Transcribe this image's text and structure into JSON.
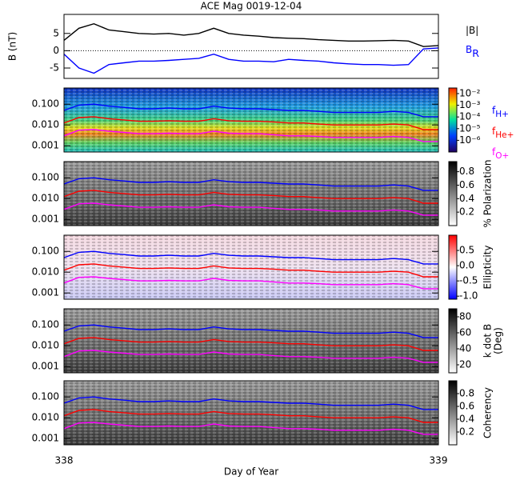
{
  "chart_data": [
    {
      "type": "line",
      "title": "ACE Mag 0019-12-04",
      "ylabel": "B (nT)",
      "x": [
        338,
        338.04,
        338.08,
        338.12,
        338.16,
        338.2,
        338.24,
        338.28,
        338.32,
        338.36,
        338.4,
        338.44,
        338.48,
        338.52,
        338.56,
        338.6,
        338.64,
        338.68,
        338.72,
        338.76,
        338.8,
        338.84,
        338.88,
        338.92,
        338.96,
        339
      ],
      "xlim": [
        338,
        339
      ],
      "xticks": [
        338,
        339
      ],
      "xlabel": "Day of Year",
      "ylim": [
        -8,
        10.5
      ],
      "yticks": [
        -5,
        0,
        5
      ],
      "series": [
        {
          "name": "|B|",
          "color": "#000000",
          "values": [
            3,
            6.5,
            7.8,
            6,
            5.5,
            5,
            4.8,
            5,
            4.5,
            5,
            6.5,
            5,
            4.5,
            4.2,
            3.8,
            3.6,
            3.5,
            3.2,
            3,
            2.8,
            2.8,
            2.9,
            3,
            2.8,
            1.2,
            1.5
          ]
        },
        {
          "name": "B",
          "subscript": "R",
          "color": "#0000ff",
          "values": [
            -1,
            -5,
            -6.5,
            -4,
            -3.5,
            -3,
            -3,
            -2.8,
            -2.5,
            -2.2,
            -1,
            -2.5,
            -3,
            -3,
            -3.2,
            -2.5,
            -2.8,
            -3,
            -3.5,
            -3.8,
            -4,
            -4,
            -4.2,
            -4,
            0.5,
            0.8
          ]
        }
      ]
    },
    {
      "type": "spectrogram",
      "log_y": true,
      "ylim": [
        0.0005,
        0.6
      ],
      "yticks": [
        {
          "value": 0.1,
          "label": "0.100"
        },
        {
          "value": 0.01,
          "label": "0.010"
        },
        0.001
      ],
      "zlim": [
        1e-07,
        0.03
      ],
      "log_z": true,
      "colormap": "rainbow",
      "zticks": [
        {
          "value": 0.01,
          "label": "10⁻²"
        },
        {
          "value": 0.001,
          "label": "10⁻³"
        },
        {
          "value": 0.0001,
          "label": "10⁻⁴"
        },
        {
          "value": 1e-05,
          "label": "10⁻⁵"
        },
        {
          "value": 1e-06,
          "label": "10⁻⁶"
        }
      ],
      "series": [
        {
          "name": "f",
          "subscript": "H+",
          "color": "#0000ff",
          "values": [
            0.05,
            0.09,
            0.1,
            0.08,
            0.07,
            0.06,
            0.06,
            0.065,
            0.06,
            0.06,
            0.08,
            0.065,
            0.06,
            0.06,
            0.055,
            0.05,
            0.05,
            0.045,
            0.04,
            0.04,
            0.04,
            0.04,
            0.045,
            0.04,
            0.025,
            0.025
          ]
        },
        {
          "name": "f",
          "subscript": "He+",
          "color": "#ff0000",
          "values": [
            0.0125,
            0.0225,
            0.025,
            0.02,
            0.0175,
            0.015,
            0.015,
            0.016,
            0.015,
            0.015,
            0.02,
            0.016,
            0.015,
            0.015,
            0.014,
            0.0125,
            0.0125,
            0.011,
            0.01,
            0.01,
            0.01,
            0.01,
            0.011,
            0.01,
            0.006,
            0.006
          ]
        },
        {
          "name": "f",
          "subscript": "O+",
          "color": "#ff00ff",
          "values": [
            0.003,
            0.0056,
            0.006,
            0.005,
            0.0044,
            0.0038,
            0.0038,
            0.004,
            0.0038,
            0.0038,
            0.005,
            0.004,
            0.0038,
            0.0038,
            0.0034,
            0.003,
            0.003,
            0.0028,
            0.0025,
            0.0025,
            0.0025,
            0.0025,
            0.0028,
            0.0025,
            0.0016,
            0.0016
          ]
        }
      ]
    },
    {
      "type": "spectrogram",
      "log_y": true,
      "ylim": [
        0.0005,
        0.6
      ],
      "yticks": [
        {
          "value": 0.1,
          "label": "0.100"
        },
        {
          "value": 0.01,
          "label": "0.010"
        },
        0.001
      ],
      "zlim": [
        0,
        0.95
      ],
      "colormap": "gray",
      "zlabel": [
        "% Polarization"
      ],
      "zticks": [
        0.2,
        0.4,
        0.6,
        0.8
      ]
    },
    {
      "type": "spectrogram",
      "log_y": true,
      "ylim": [
        0.0005,
        0.6
      ],
      "yticks": [
        {
          "value": 0.1,
          "label": "0.100"
        },
        {
          "value": 0.01,
          "label": "0.010"
        },
        0.001
      ],
      "zlim": [
        -1.1,
        1
      ],
      "colormap": "bwr",
      "zlabel": [
        "Ellipticity"
      ],
      "zticks": [
        {
          "value": -1,
          "label": "-1.0"
        },
        -0.5,
        {
          "value": 0,
          "label": "0.0"
        },
        0.5
      ]
    },
    {
      "type": "spectrogram",
      "log_y": true,
      "ylim": [
        0.0005,
        0.6
      ],
      "yticks": [
        {
          "value": 0.1,
          "label": "0.100"
        },
        {
          "value": 0.01,
          "label": "0.010"
        },
        0.001
      ],
      "zlim": [
        10,
        90
      ],
      "colormap": "gray",
      "zlabel": [
        "k dot B",
        "(Deg)"
      ],
      "zticks": [
        20,
        40,
        60,
        80
      ]
    },
    {
      "type": "spectrogram",
      "log_y": true,
      "ylim": [
        0.0005,
        0.6
      ],
      "yticks": [
        {
          "value": 0.1,
          "label": "0.100"
        },
        {
          "value": 0.01,
          "label": "0.010"
        },
        0.001
      ],
      "zlim": [
        0,
        1
      ],
      "colormap": "gray",
      "zlabel": [
        "Coherency"
      ],
      "zticks": [
        0.2,
        0.4,
        0.6,
        0.8
      ]
    }
  ]
}
